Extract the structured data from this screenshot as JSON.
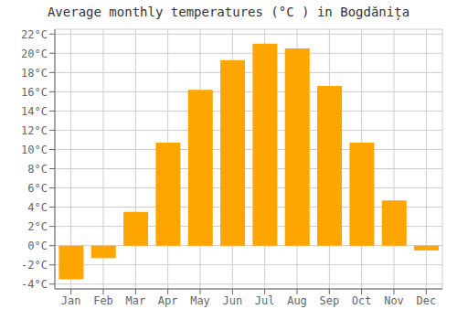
{
  "chart_data": {
    "type": "bar",
    "title": "Average monthly temperatures (°C ) in Bogdănița",
    "categories": [
      "Jan",
      "Feb",
      "Mar",
      "Apr",
      "May",
      "Jun",
      "Jul",
      "Aug",
      "Sep",
      "Oct",
      "Nov",
      "Dec"
    ],
    "values": [
      -3.5,
      -1.3,
      3.5,
      10.7,
      16.2,
      19.3,
      21.0,
      20.5,
      16.6,
      10.7,
      4.7,
      -0.5
    ],
    "color": "#FFA500",
    "ylim": [
      -4.5,
      22.5
    ],
    "yticks": [
      {
        "value": -4,
        "label": "-4°C"
      },
      {
        "value": -2,
        "label": "-2°C"
      },
      {
        "value": 0,
        "label": "0°C"
      },
      {
        "value": 2,
        "label": "2°C"
      },
      {
        "value": 4,
        "label": "4°C"
      },
      {
        "value": 6,
        "label": "6°C"
      },
      {
        "value": 8,
        "label": "8°C"
      },
      {
        "value": 10,
        "label": "10°C"
      },
      {
        "value": 12,
        "label": "12°C"
      },
      {
        "value": 14,
        "label": "14°C"
      },
      {
        "value": 16,
        "label": "16°C"
      },
      {
        "value": 18,
        "label": "18°C"
      },
      {
        "value": 20,
        "label": "20°C"
      },
      {
        "value": 22,
        "label": "22°C"
      }
    ],
    "grid": true
  }
}
